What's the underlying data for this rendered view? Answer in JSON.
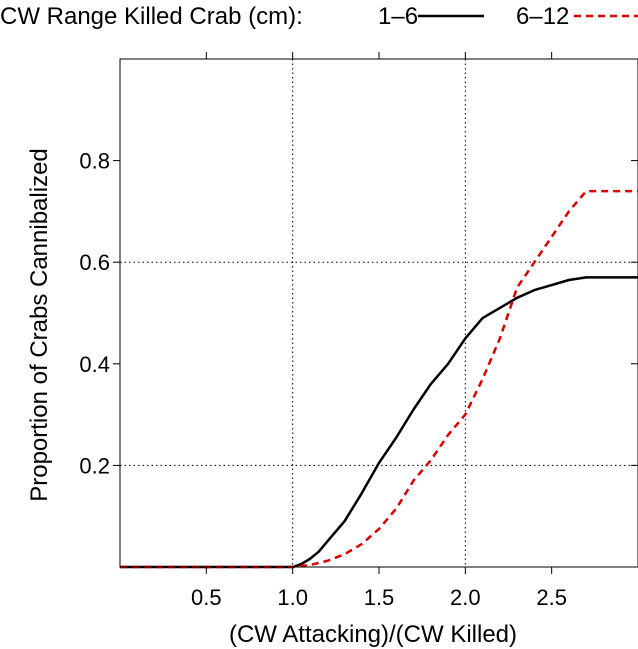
{
  "chart_data": {
    "type": "line",
    "legend": {
      "title": "CW Range Killed Crab (cm):",
      "placement": "top"
    },
    "xlabel": "(CW Attacking)/(CW Killed)",
    "ylabel": "Proportion of Crabs Cannibalized",
    "xlim": [
      0,
      3.0
    ],
    "ylim": [
      0,
      1.0
    ],
    "xticks": [
      0.5,
      1.0,
      1.5,
      2.0,
      2.5
    ],
    "xtick_labels": [
      "0.5",
      "1.0",
      "1.5",
      "2.0",
      "2.5"
    ],
    "yticks": [
      0.2,
      0.4,
      0.6,
      0.8
    ],
    "ytick_labels": [
      "0.2",
      "0.4",
      "0.6",
      "0.8"
    ],
    "grid": {
      "x": [
        1.0,
        2.0
      ],
      "y": [
        0.2,
        0.6
      ],
      "style": "dotted"
    },
    "series": [
      {
        "name": "1–6",
        "color": "#000000",
        "dash": "solid",
        "x": [
          0.0,
          0.5,
          0.9,
          1.0,
          1.05,
          1.1,
          1.15,
          1.2,
          1.3,
          1.4,
          1.5,
          1.6,
          1.7,
          1.8,
          1.9,
          2.0,
          2.1,
          2.2,
          2.3,
          2.4,
          2.5,
          2.6,
          2.7,
          2.8,
          3.0
        ],
        "values": [
          0.0,
          0.0,
          0.0,
          0.0,
          0.006,
          0.016,
          0.03,
          0.05,
          0.09,
          0.145,
          0.205,
          0.255,
          0.31,
          0.36,
          0.4,
          0.45,
          0.49,
          0.51,
          0.53,
          0.545,
          0.555,
          0.565,
          0.57,
          0.57,
          0.57
        ]
      },
      {
        "name": "6–12",
        "color": "#dd0000",
        "dash": "dashed",
        "x": [
          0.0,
          0.7,
          1.0,
          1.1,
          1.2,
          1.3,
          1.4,
          1.5,
          1.6,
          1.7,
          1.8,
          1.9,
          2.0,
          2.1,
          2.2,
          2.3,
          2.4,
          2.5,
          2.6,
          2.7,
          2.8,
          3.0
        ],
        "values": [
          0.0,
          0.0,
          0.0,
          0.004,
          0.012,
          0.025,
          0.045,
          0.075,
          0.115,
          0.17,
          0.21,
          0.26,
          0.3,
          0.37,
          0.45,
          0.55,
          0.6,
          0.65,
          0.7,
          0.74,
          0.74,
          0.74
        ]
      }
    ]
  }
}
